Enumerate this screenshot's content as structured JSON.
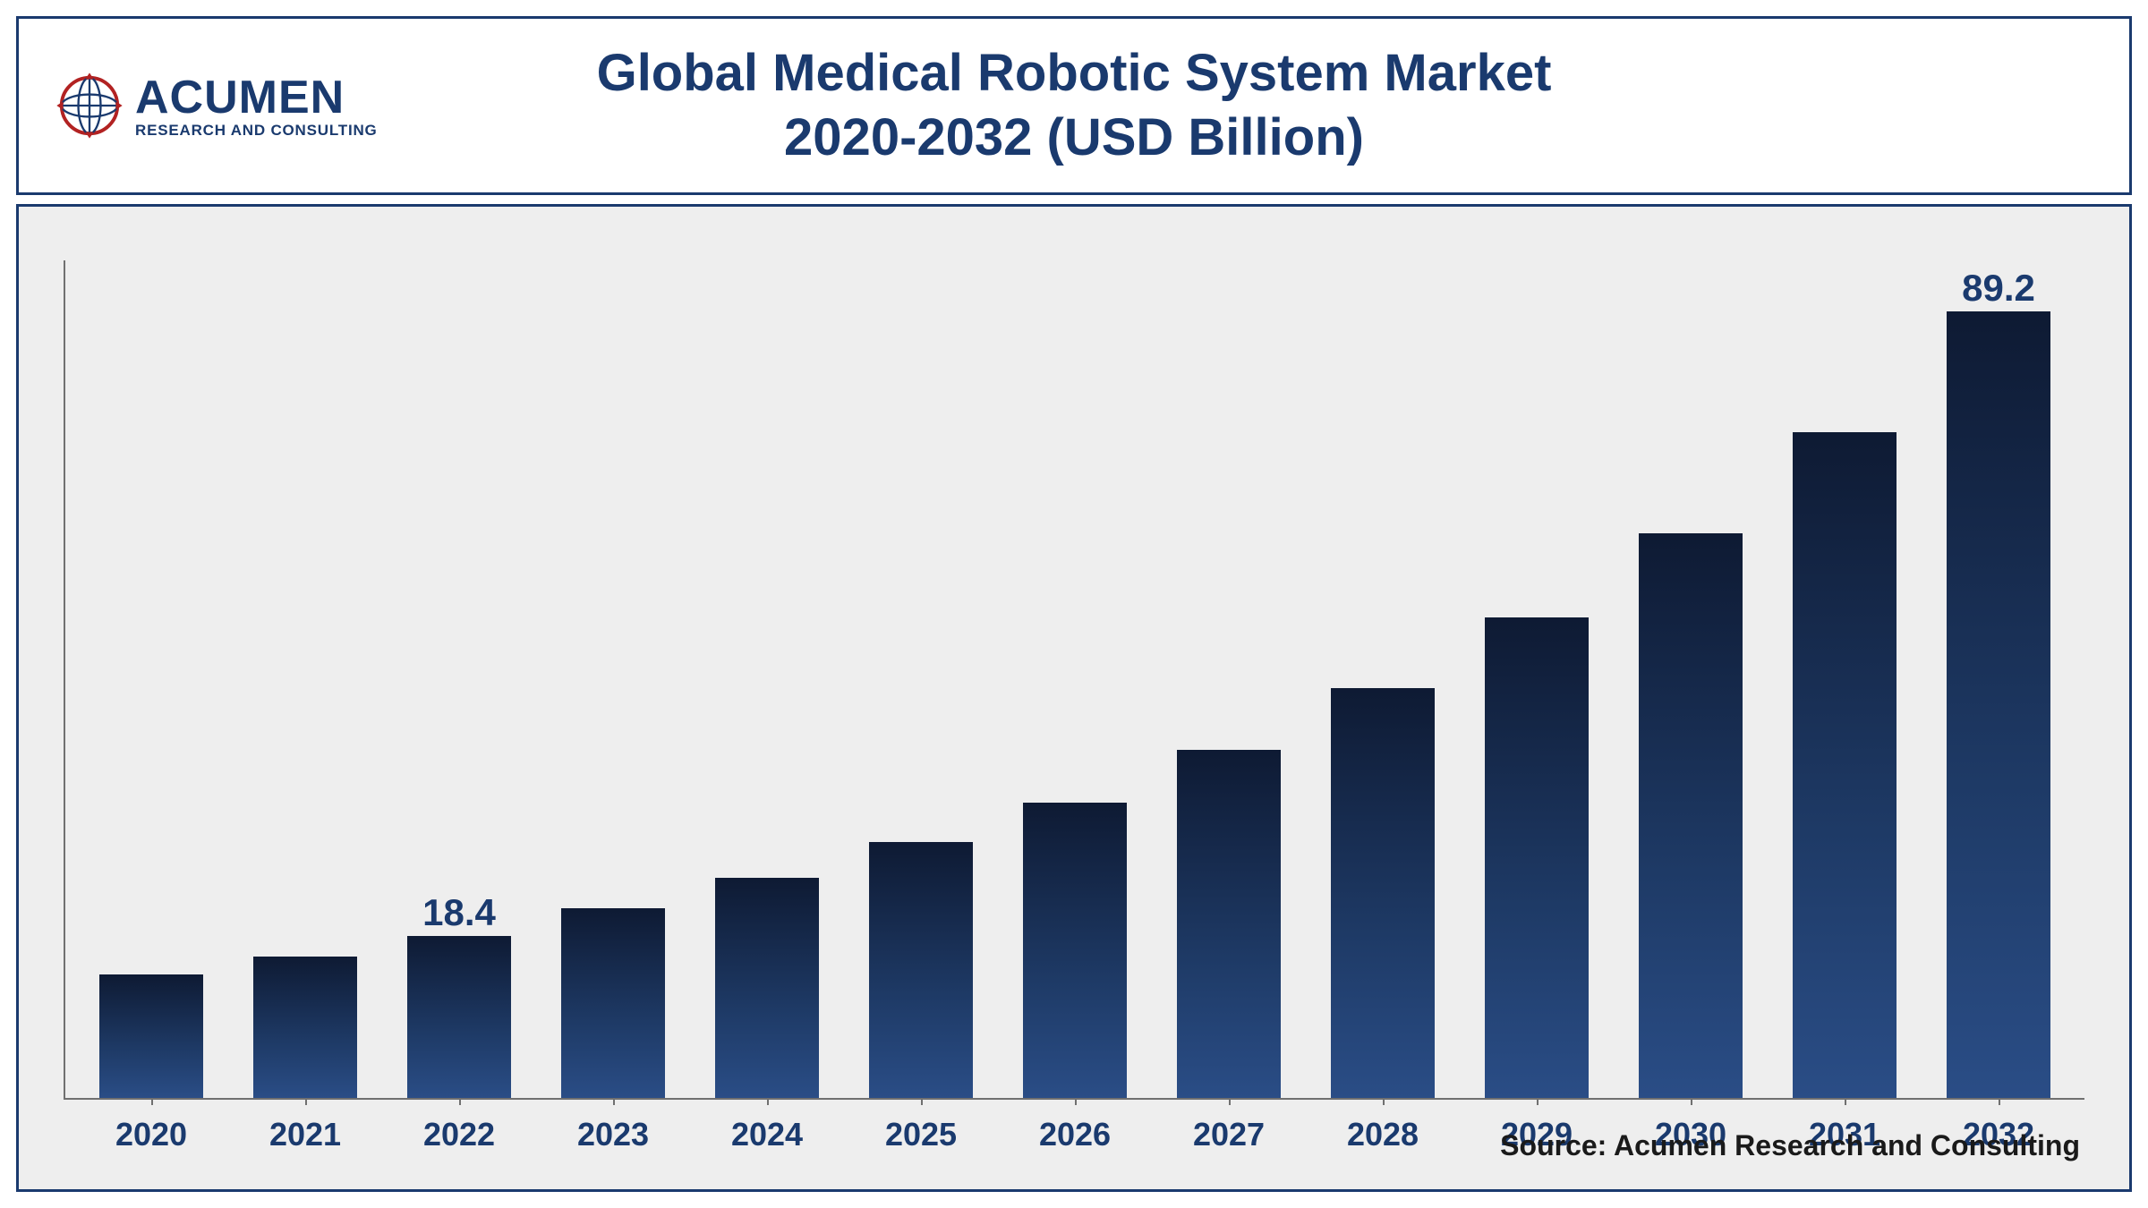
{
  "header": {
    "logo_main": "ACUMEN",
    "logo_sub": "RESEARCH AND CONSULTING",
    "title_line1": "Global Medical Robotic System Market",
    "title_line2": "2020-2032 (USD Billion)",
    "title_color": "#1a3a6e",
    "title_fontsize": 58,
    "border_color": "#1a3a6e"
  },
  "chart": {
    "type": "bar",
    "background_color": "#eeeeee",
    "border_color": "#1a3a6e",
    "axis_color": "#707070",
    "bar_gradient_top": "#0e1a33",
    "bar_gradient_mid": "#1e3a66",
    "bar_gradient_bottom": "#2a4d86",
    "bar_width_ratio": 0.68,
    "ymax": 95,
    "categories": [
      "2020",
      "2021",
      "2022",
      "2023",
      "2024",
      "2025",
      "2026",
      "2027",
      "2028",
      "2029",
      "2030",
      "2031",
      "2032"
    ],
    "values": [
      14.0,
      16.0,
      18.4,
      21.5,
      25.0,
      29.0,
      33.5,
      39.5,
      46.5,
      54.5,
      64.0,
      75.5,
      89.2
    ],
    "value_labels": [
      "",
      "",
      "18.4",
      "",
      "",
      "",
      "",
      "",
      "",
      "",
      "",
      "",
      "89.2"
    ],
    "label_fontsize": 42,
    "label_color": "#1a3a6e",
    "xaxis_fontsize": 36,
    "xaxis_color": "#1a3a6e"
  },
  "source": {
    "text": "Source: Acumen Research and Consulting",
    "fontsize": 32,
    "color": "#1a1a1a"
  }
}
